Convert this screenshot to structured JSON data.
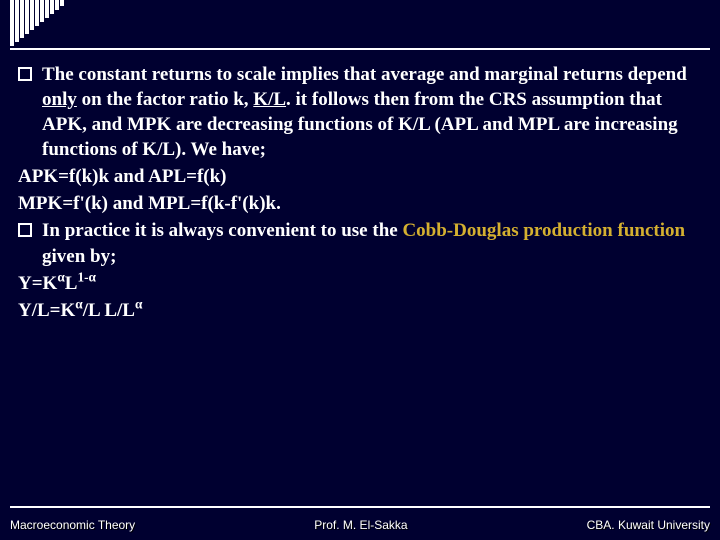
{
  "bars": [
    46,
    42,
    38,
    34,
    30,
    26,
    22,
    18,
    14,
    10,
    6
  ],
  "bullet1": {
    "part1": "The constant returns to scale implies that average and marginal returns depend ",
    "only": "only",
    "part2": " on the factor ratio k, ",
    "kl": "K/L",
    "part3": ". it follows then from the CRS assumption that APK, and MPK are decreasing functions of K/L (APL and MPL are increasing functions of K/L). We have;"
  },
  "eq1": "APK=f(k)k and APL=f(k)",
  "eq2": "MPK=f'(k) and MPL=f(k-f'(k)k.",
  "bullet2": {
    "part1": "In practice it is always  convenient to use the ",
    "cobb": "Cobb-Douglas production function",
    "part2": " given by;"
  },
  "eq3": {
    "pre": "Y=K",
    "sup1": "α",
    "mid": "L",
    "sup2": "1-α"
  },
  "eq4": {
    "pre": "Y/L=K",
    "sup1": "α",
    "mid": "/L L/L",
    "sup2": "α"
  },
  "footer": {
    "left": "Macroeconomic Theory",
    "center": "Prof. M. El-Sakka",
    "right": "CBA. Kuwait University"
  }
}
